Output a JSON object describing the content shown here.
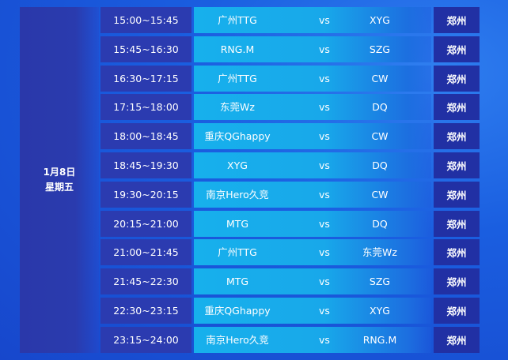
{
  "date": {
    "day": "1月8日",
    "weekday": "星期五"
  },
  "matches": [
    {
      "time": "15:00~15:45",
      "team1": "广州TTG",
      "vs": "vs",
      "team2": "XYG",
      "city": "郑州"
    },
    {
      "time": "15:45~16:30",
      "team1": "RNG.M",
      "vs": "vs",
      "team2": "SZG",
      "city": "郑州"
    },
    {
      "time": "16:30~17:15",
      "team1": "广州TTG",
      "vs": "vs",
      "team2": "CW",
      "city": "郑州"
    },
    {
      "time": "17:15~18:00",
      "team1": "东莞Wz",
      "vs": "vs",
      "team2": "DQ",
      "city": "郑州"
    },
    {
      "time": "18:00~18:45",
      "team1": "重庆QGhappy",
      "vs": "vs",
      "team2": "CW",
      "city": "郑州"
    },
    {
      "time": "18:45~19:30",
      "team1": "XYG",
      "vs": "vs",
      "team2": "DQ",
      "city": "郑州"
    },
    {
      "time": "19:30~20:15",
      "team1": "南京Hero久竞",
      "vs": "vs",
      "team2": "CW",
      "city": "郑州"
    },
    {
      "time": "20:15~21:00",
      "team1": "MTG",
      "vs": "vs",
      "team2": "DQ",
      "city": "郑州"
    },
    {
      "time": "21:00~21:45",
      "team1": "广州TTG",
      "vs": "vs",
      "team2": "东莞Wz",
      "city": "郑州"
    },
    {
      "time": "21:45~22:30",
      "team1": "MTG",
      "vs": "vs",
      "team2": "SZG",
      "city": "郑州"
    },
    {
      "time": "22:30~23:15",
      "team1": "重庆QGhappy",
      "vs": "vs",
      "team2": "XYG",
      "city": "郑州"
    },
    {
      "time": "23:15~24:00",
      "team1": "南京Hero久竞",
      "vs": "vs",
      "team2": "RNG.M",
      "city": "郑州"
    }
  ],
  "colors": {
    "background": "#1a5ee0",
    "time_cell": "#2b3bb0",
    "match_cell": "#17b0ec",
    "city_cell": "#2130a4"
  }
}
